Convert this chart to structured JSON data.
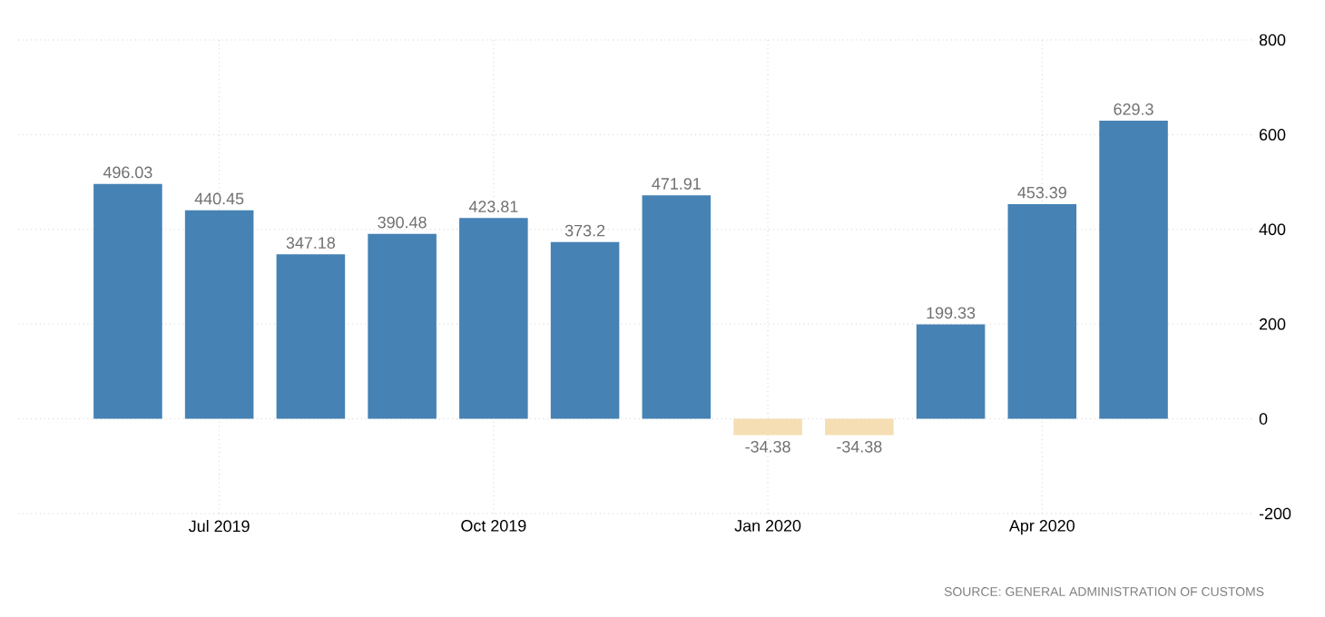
{
  "chart_data": {
    "type": "bar",
    "categories": [
      null,
      "Jul 2019",
      null,
      null,
      "Oct 2019",
      null,
      null,
      "Jan 2020",
      null,
      null,
      "Apr 2020",
      null
    ],
    "values": [
      496.03,
      440.45,
      347.18,
      390.48,
      423.81,
      373.2,
      471.91,
      -34.38,
      -34.38,
      199.33,
      453.39,
      629.3
    ],
    "colors": [
      "#4682b4",
      "#4682b4",
      "#4682b4",
      "#4682b4",
      "#4682b4",
      "#4682b4",
      "#4682b4",
      "#f5deb3",
      "#f5deb3",
      "#4682b4",
      "#4682b4",
      "#4682b4"
    ],
    "ylim": [
      -200,
      800
    ],
    "yticks": [
      -200,
      0,
      200,
      400,
      600,
      800
    ],
    "grid": true,
    "data_labels": true,
    "annotations": [
      "SOURCE: GENERAL ADMINISTRATION OF CUSTOMS"
    ]
  }
}
